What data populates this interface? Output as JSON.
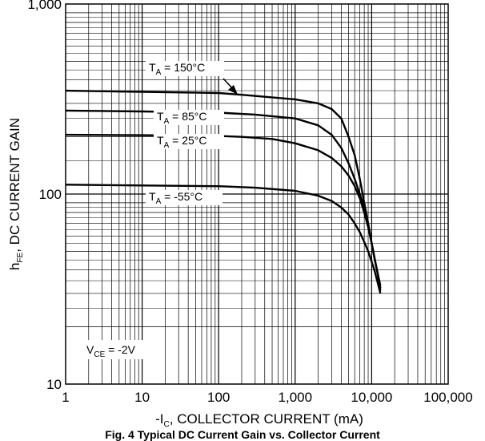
{
  "chart_data": {
    "type": "line",
    "title": "",
    "caption": "Fig. 4  Typical DC Current Gain vs. Collector Current",
    "xlabel": {
      "pre": "-I",
      "sub": "C",
      "post": ", COLLECTOR CURRENT (mA)"
    },
    "ylabel": {
      "pre": "h",
      "sub": "FE",
      "post": ", DC CURRENT GAIN"
    },
    "xscale": "log",
    "yscale": "log",
    "xlim": [
      1,
      100000
    ],
    "ylim": [
      10,
      1000
    ],
    "grid": true,
    "x_tick_labels": [
      "1",
      "10",
      "100",
      "1,000",
      "10,000",
      "100,000"
    ],
    "y_tick_labels": [
      "10",
      "100",
      "1,000"
    ],
    "condition": {
      "pre": "V",
      "sub": "CE",
      "post": " = -2V"
    },
    "series": [
      {
        "name": {
          "pre": "T",
          "sub": "A",
          "post": " = 150°C"
        },
        "x": [
          1,
          10,
          100,
          200,
          400,
          1000,
          2000,
          3000,
          4000,
          5000,
          6000,
          7000,
          8000,
          9000,
          10000,
          11000,
          12000,
          13000
        ],
        "y": [
          350,
          345,
          340,
          333,
          325,
          315,
          300,
          280,
          250,
          200,
          160,
          120,
          90,
          70,
          55,
          45,
          38,
          33
        ]
      },
      {
        "name": {
          "pre": "T",
          "sub": "A",
          "post": " = 85°C"
        },
        "x": [
          1,
          10,
          100,
          300,
          1000,
          2000,
          3000,
          4000,
          5000,
          6000,
          7000,
          8000,
          9000,
          10000,
          11000,
          12000,
          13000
        ],
        "y": [
          275,
          272,
          268,
          262,
          250,
          230,
          205,
          175,
          145,
          120,
          100,
          85,
          70,
          55,
          45,
          38,
          32
        ]
      },
      {
        "name": {
          "pre": "T",
          "sub": "A",
          "post": " = 25°C"
        },
        "x": [
          1,
          10,
          100,
          200,
          500,
          1000,
          2000,
          3000,
          4000,
          5000,
          6000,
          7000,
          8000,
          9000,
          10000,
          11000,
          12000,
          13000
        ],
        "y": [
          205,
          204,
          202,
          200,
          195,
          185,
          170,
          155,
          140,
          125,
          110,
          95,
          80,
          67,
          55,
          45,
          38,
          31
        ]
      },
      {
        "name": {
          "pre": "T",
          "sub": "A",
          "post": " = -55°C"
        },
        "x": [
          1,
          10,
          100,
          300,
          1000,
          2000,
          3000,
          4000,
          5000,
          6000,
          7000,
          8000,
          9000,
          10000,
          11000,
          12000,
          13000
        ],
        "y": [
          112,
          111,
          110,
          108,
          104,
          98,
          92,
          85,
          78,
          70,
          63,
          56,
          50,
          44,
          39,
          34,
          30
        ]
      }
    ]
  }
}
